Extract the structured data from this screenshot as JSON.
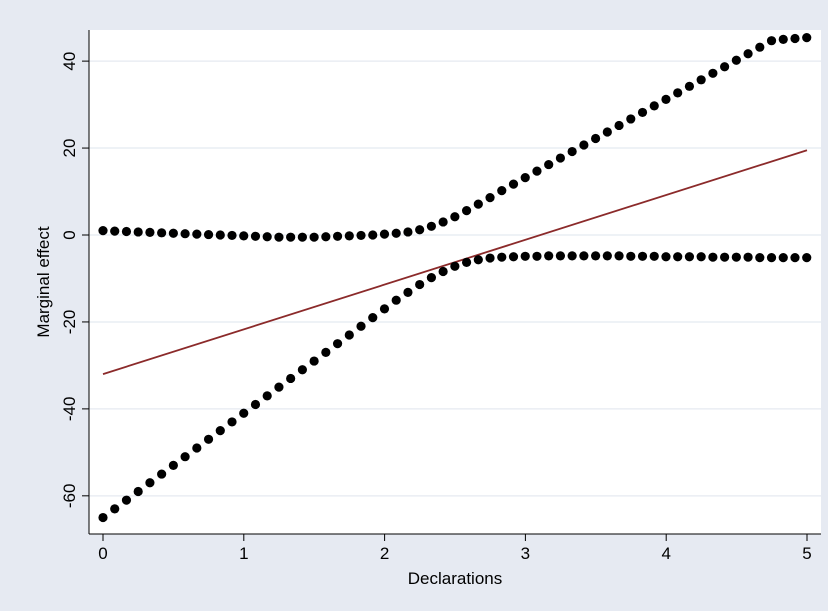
{
  "chart_data": {
    "type": "line",
    "title": "",
    "xlabel": "Declarations",
    "ylabel": "Marginal effect",
    "xlim": [
      0,
      5
    ],
    "ylim": [
      -68,
      47
    ],
    "x_ticks": [
      0,
      1,
      2,
      3,
      4,
      5
    ],
    "x_tick_labels": [
      "0",
      "1",
      "2",
      "3",
      "4",
      "5"
    ],
    "y_ticks": [
      -60,
      -40,
      -20,
      0,
      20,
      40
    ],
    "y_tick_labels": [
      "-60",
      "-40",
      "-20",
      "0",
      "20",
      "40"
    ],
    "grid": "horizontal",
    "legend": "none",
    "x_step": 0.0833,
    "series": [
      {
        "style": "line",
        "color": "#8b2a2a",
        "x": [
          0,
          5
        ],
        "values": [
          -32,
          19.5
        ]
      },
      {
        "style": "dots",
        "color": "#000000",
        "values": [
          1.0,
          0.9,
          0.8,
          0.7,
          0.6,
          0.5,
          0.4,
          0.3,
          0.2,
          0.1,
          0.0,
          -0.1,
          -0.2,
          -0.3,
          -0.4,
          -0.5,
          -0.5,
          -0.5,
          -0.5,
          -0.4,
          -0.3,
          -0.2,
          -0.1,
          0.0,
          0.2,
          0.4,
          0.7,
          1.2,
          2.0,
          3.0,
          4.2,
          5.6,
          7.1,
          8.6,
          10.2,
          11.7,
          13.2,
          14.7,
          16.2,
          17.7,
          19.2,
          20.7,
          22.2,
          23.7,
          25.2,
          26.7,
          28.2,
          29.7,
          31.2,
          32.7,
          34.2,
          35.7,
          37.2,
          38.7,
          40.2,
          41.7,
          43.2,
          44.7,
          45.0,
          45.2,
          45.4
        ]
      },
      {
        "style": "dots",
        "color": "#000000",
        "values": [
          -65.0,
          -63.0,
          -61.0,
          -59.0,
          -57.0,
          -55.0,
          -53.0,
          -51.0,
          -49.0,
          -47.0,
          -45.0,
          -43.0,
          -41.0,
          -39.0,
          -37.0,
          -35.0,
          -33.0,
          -31.0,
          -29.0,
          -27.0,
          -25.0,
          -23.0,
          -21.0,
          -19.0,
          -17.0,
          -15.0,
          -13.2,
          -11.4,
          -9.8,
          -8.4,
          -7.2,
          -6.3,
          -5.7,
          -5.3,
          -5.1,
          -5.0,
          -4.9,
          -4.9,
          -4.8,
          -4.8,
          -4.8,
          -4.8,
          -4.8,
          -4.8,
          -4.8,
          -4.9,
          -4.9,
          -4.9,
          -5.0,
          -5.0,
          -5.0,
          -5.0,
          -5.1,
          -5.1,
          -5.1,
          -5.1,
          -5.2,
          -5.2,
          -5.2,
          -5.2,
          -5.2
        ]
      }
    ]
  }
}
